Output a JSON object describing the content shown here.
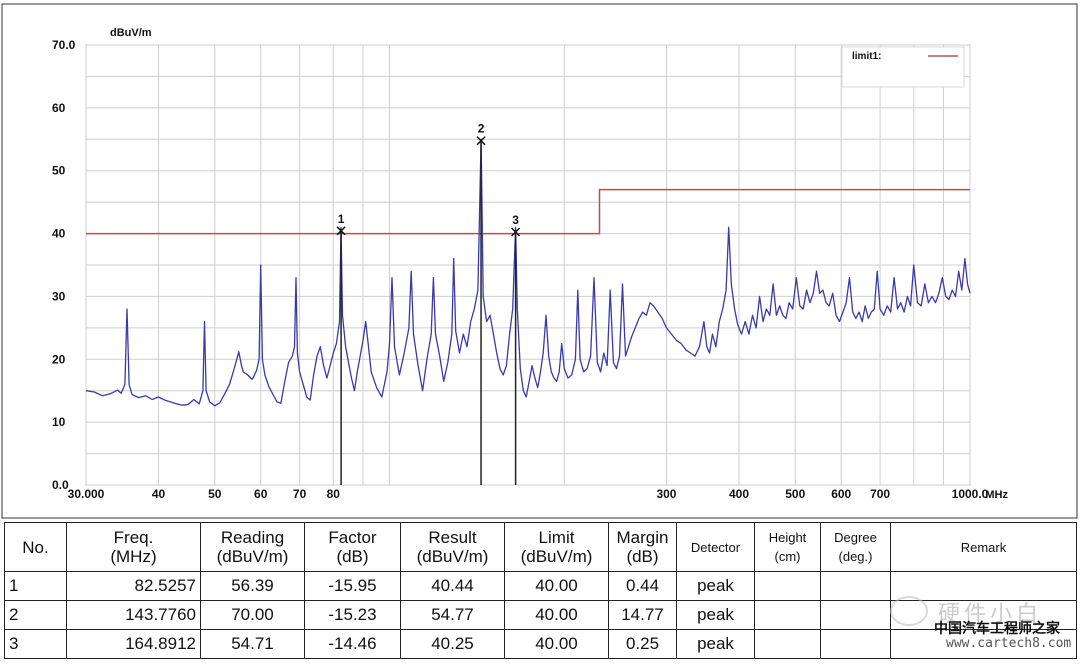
{
  "chart_data": {
    "type": "line",
    "y_unit": "dBuV/m",
    "x_unit": "MHz",
    "x_scale": "log",
    "xlim": [
      30,
      1000
    ],
    "ylim": [
      0,
      70
    ],
    "grid": true,
    "y_ticks": [
      {
        "value": 0,
        "label": "0.0"
      },
      {
        "value": 10,
        "label": "10"
      },
      {
        "value": 20,
        "label": "20"
      },
      {
        "value": 30,
        "label": "30"
      },
      {
        "value": 40,
        "label": "40"
      },
      {
        "value": 50,
        "label": "50"
      },
      {
        "value": 60,
        "label": "60"
      },
      {
        "value": 70,
        "label": "70.0"
      }
    ],
    "x_ticks": [
      {
        "value": 30,
        "label": "30.000"
      },
      {
        "value": 40,
        "label": "40"
      },
      {
        "value": 50,
        "label": "50"
      },
      {
        "value": 60,
        "label": "60"
      },
      {
        "value": 70,
        "label": "70"
      },
      {
        "value": 80,
        "label": "80"
      },
      {
        "value": 90,
        "label": ""
      },
      {
        "value": 100,
        "label": ""
      },
      {
        "value": 200,
        "label": ""
      },
      {
        "value": 300,
        "label": "300"
      },
      {
        "value": 400,
        "label": "400"
      },
      {
        "value": 500,
        "label": "500"
      },
      {
        "value": 600,
        "label": "600"
      },
      {
        "value": 700,
        "label": "700"
      },
      {
        "value": 800,
        "label": ""
      },
      {
        "value": 900,
        "label": ""
      },
      {
        "value": 1000,
        "label": "1000.0"
      }
    ],
    "legend": {
      "position": "top-right",
      "label": "limit1:",
      "color": "#b5534a"
    },
    "limit_line": {
      "name": "limit1",
      "color": "#b5534a",
      "points": [
        [
          30,
          40
        ],
        [
          230,
          40
        ],
        [
          230,
          47
        ],
        [
          1000,
          47
        ]
      ]
    },
    "trace": {
      "color": "#3a3aa8",
      "points": [
        [
          30,
          15
        ],
        [
          31,
          14.8
        ],
        [
          32,
          14.2
        ],
        [
          33,
          14.5
        ],
        [
          34,
          15.1
        ],
        [
          34.5,
          14.6
        ],
        [
          35,
          16
        ],
        [
          35.3,
          28
        ],
        [
          35.6,
          16
        ],
        [
          36,
          14.4
        ],
        [
          37,
          13.9
        ],
        [
          38,
          14.2
        ],
        [
          39,
          13.6
        ],
        [
          40,
          14.0
        ],
        [
          41,
          13.5
        ],
        [
          42,
          13.2
        ],
        [
          43,
          12.9
        ],
        [
          44,
          12.7
        ],
        [
          45,
          12.8
        ],
        [
          46,
          13.6
        ],
        [
          47,
          12.9
        ],
        [
          47.7,
          15
        ],
        [
          48.0,
          26
        ],
        [
          48.3,
          15
        ],
        [
          49,
          13.2
        ],
        [
          50,
          12.6
        ],
        [
          51,
          13.1
        ],
        [
          52,
          14.5
        ],
        [
          53,
          16
        ],
        [
          54,
          18.5
        ],
        [
          55,
          21.2
        ],
        [
          55.6,
          19
        ],
        [
          56,
          18
        ],
        [
          57,
          17.5
        ],
        [
          58,
          16.8
        ],
        [
          59,
          18.2
        ],
        [
          59.6,
          20
        ],
        [
          60,
          35
        ],
        [
          60.4,
          20
        ],
        [
          61,
          17.5
        ],
        [
          62,
          15.6
        ],
        [
          63,
          14.4
        ],
        [
          64,
          13.2
        ],
        [
          65,
          13.0
        ],
        [
          66,
          16.5
        ],
        [
          67,
          19.5
        ],
        [
          68,
          20.5
        ],
        [
          68.6,
          22
        ],
        [
          69.0,
          33
        ],
        [
          69.4,
          21
        ],
        [
          70,
          18.0
        ],
        [
          71,
          16.0
        ],
        [
          72,
          14.0
        ],
        [
          73,
          13.5
        ],
        [
          74,
          17.5
        ],
        [
          75,
          20.5
        ],
        [
          76,
          22.0
        ],
        [
          77,
          19.0
        ],
        [
          78,
          17.0
        ],
        [
          79,
          19.0
        ],
        [
          80,
          21.0
        ],
        [
          81,
          22.5
        ],
        [
          82,
          26.0
        ],
        [
          82.5,
          41
        ],
        [
          83,
          27
        ],
        [
          84,
          22.0
        ],
        [
          85,
          19.5
        ],
        [
          86,
          17.0
        ],
        [
          87,
          15.0
        ],
        [
          88,
          18.0
        ],
        [
          90,
          23.0
        ],
        [
          91,
          26.0
        ],
        [
          92,
          22.0
        ],
        [
          93,
          18.0
        ],
        [
          95,
          15.5
        ],
        [
          97,
          14.0
        ],
        [
          99,
          18.0
        ],
        [
          100,
          22.5
        ],
        [
          101,
          33
        ],
        [
          102,
          22.0
        ],
        [
          104,
          17.5
        ],
        [
          106,
          21.0
        ],
        [
          108,
          25.0
        ],
        [
          109,
          34
        ],
        [
          110,
          24.0
        ],
        [
          112,
          19.0
        ],
        [
          114,
          15.0
        ],
        [
          116,
          20.0
        ],
        [
          118,
          24.0
        ],
        [
          119,
          33
        ],
        [
          120,
          24.0
        ],
        [
          122,
          20.5
        ],
        [
          124,
          16.5
        ],
        [
          126,
          19.5
        ],
        [
          128,
          24.0
        ],
        [
          129,
          36
        ],
        [
          130,
          24.5
        ],
        [
          132,
          21.0
        ],
        [
          134,
          24.0
        ],
        [
          136,
          22.0
        ],
        [
          138,
          26.0
        ],
        [
          140,
          28.0
        ],
        [
          142,
          31.0
        ],
        [
          143.8,
          55
        ],
        [
          145,
          30
        ],
        [
          147,
          26.0
        ],
        [
          149,
          27.0
        ],
        [
          151,
          24.0
        ],
        [
          153,
          21.0
        ],
        [
          155,
          18.5
        ],
        [
          157,
          17.5
        ],
        [
          159,
          19.0
        ],
        [
          161,
          24.0
        ],
        [
          163,
          28.0
        ],
        [
          164.9,
          41
        ],
        [
          166,
          28
        ],
        [
          168,
          18.5
        ],
        [
          170,
          15.0
        ],
        [
          172,
          14.0
        ],
        [
          174,
          16.5
        ],
        [
          176,
          19.0
        ],
        [
          178,
          17.0
        ],
        [
          180,
          15.5
        ],
        [
          182,
          18.0
        ],
        [
          184,
          21.0
        ],
        [
          186,
          27.0
        ],
        [
          188,
          20.5
        ],
        [
          190,
          18.0
        ],
        [
          192,
          17.0
        ],
        [
          194,
          16.5
        ],
        [
          196,
          18.0
        ],
        [
          198,
          22.5
        ],
        [
          200,
          18.5
        ],
        [
          203,
          17.0
        ],
        [
          206,
          17.5
        ],
        [
          209,
          20.0
        ],
        [
          211,
          31
        ],
        [
          213,
          20.0
        ],
        [
          216,
          18.0
        ],
        [
          219,
          18.5
        ],
        [
          222,
          20.5
        ],
        [
          225,
          33
        ],
        [
          228,
          19.5
        ],
        [
          231,
          18.0
        ],
        [
          234,
          21.0
        ],
        [
          237,
          19.0
        ],
        [
          240,
          31
        ],
        [
          243,
          19.5
        ],
        [
          246,
          18.5
        ],
        [
          249,
          20.5
        ],
        [
          252,
          32
        ],
        [
          255,
          20.5
        ],
        [
          258,
          22.0
        ],
        [
          261,
          23.5
        ],
        [
          265,
          25.0
        ],
        [
          269,
          26.5
        ],
        [
          273,
          27.5
        ],
        [
          277,
          27.0
        ],
        [
          281,
          29.0
        ],
        [
          285,
          28.5
        ],
        [
          290,
          27.5
        ],
        [
          295,
          26.5
        ],
        [
          300,
          25.0
        ],
        [
          306,
          24.0
        ],
        [
          312,
          23.0
        ],
        [
          318,
          22.5
        ],
        [
          324,
          21.5
        ],
        [
          330,
          21.0
        ],
        [
          336,
          20.5
        ],
        [
          342,
          22.0
        ],
        [
          348,
          26.0
        ],
        [
          352,
          22.0
        ],
        [
          356,
          21.0
        ],
        [
          360,
          24.0
        ],
        [
          365,
          22.0
        ],
        [
          370,
          26.0
        ],
        [
          375,
          28.0
        ],
        [
          380,
          31.0
        ],
        [
          384,
          41
        ],
        [
          388,
          32.0
        ],
        [
          393,
          28.0
        ],
        [
          398,
          25.5
        ],
        [
          404,
          24.0
        ],
        [
          410,
          26.0
        ],
        [
          416,
          24.0
        ],
        [
          422,
          27.0
        ],
        [
          428,
          25.0
        ],
        [
          434,
          30.0
        ],
        [
          440,
          26.0
        ],
        [
          446,
          28.0
        ],
        [
          452,
          27.0
        ],
        [
          458,
          32
        ],
        [
          464,
          27.0
        ],
        [
          470,
          28.5
        ],
        [
          476,
          27.0
        ],
        [
          482,
          26.5
        ],
        [
          488,
          29.0
        ],
        [
          495,
          28.0
        ],
        [
          502,
          33
        ],
        [
          509,
          28.5
        ],
        [
          516,
          28.0
        ],
        [
          523,
          31.0
        ],
        [
          530,
          29.0
        ],
        [
          537,
          30.5
        ],
        [
          544,
          34
        ],
        [
          551,
          30.5
        ],
        [
          558,
          31.0
        ],
        [
          565,
          29.0
        ],
        [
          572,
          28.5
        ],
        [
          580,
          30.5
        ],
        [
          588,
          27.0
        ],
        [
          596,
          26.0
        ],
        [
          604,
          27.5
        ],
        [
          612,
          29.0
        ],
        [
          620,
          33
        ],
        [
          628,
          27.5
        ],
        [
          636,
          26.5
        ],
        [
          644,
          27.5
        ],
        [
          652,
          26.0
        ],
        [
          660,
          28.5
        ],
        [
          668,
          26.5
        ],
        [
          676,
          27.5
        ],
        [
          684,
          28.0
        ],
        [
          692,
          34
        ],
        [
          700,
          28.0
        ],
        [
          710,
          27.0
        ],
        [
          720,
          28.5
        ],
        [
          730,
          27.5
        ],
        [
          740,
          33
        ],
        [
          750,
          28.0
        ],
        [
          760,
          29.0
        ],
        [
          770,
          27.5
        ],
        [
          780,
          30.0
        ],
        [
          790,
          28.5
        ],
        [
          800,
          35
        ],
        [
          812,
          29.0
        ],
        [
          824,
          28.5
        ],
        [
          836,
          32
        ],
        [
          848,
          29.0
        ],
        [
          860,
          30.0
        ],
        [
          872,
          29.0
        ],
        [
          884,
          30.5
        ],
        [
          896,
          33
        ],
        [
          908,
          30.0
        ],
        [
          920,
          29.5
        ],
        [
          932,
          31.0
        ],
        [
          944,
          30.0
        ],
        [
          956,
          34
        ],
        [
          968,
          31.0
        ],
        [
          980,
          36
        ],
        [
          990,
          32.0
        ],
        [
          1000,
          30.5
        ]
      ]
    },
    "markers": [
      {
        "no": "1",
        "freq": 82.5257,
        "result": 40.44
      },
      {
        "no": "2",
        "freq": 143.776,
        "result": 54.77
      },
      {
        "no": "3",
        "freq": 164.8912,
        "result": 40.25
      }
    ]
  },
  "table": {
    "headers": [
      {
        "key": "no",
        "text": "No."
      },
      {
        "key": "freq",
        "text": "Freq.\n(MHz)"
      },
      {
        "key": "reading",
        "text": "Reading\n(dBuV/m)"
      },
      {
        "key": "factor",
        "text": "Factor\n(dB)"
      },
      {
        "key": "result",
        "text": "Result\n(dBuV/m)"
      },
      {
        "key": "limit",
        "text": "Limit\n(dBuV/m)"
      },
      {
        "key": "margin",
        "text": "Margin\n(dB)"
      },
      {
        "key": "detector",
        "text": "Detector"
      },
      {
        "key": "height",
        "text": "Height\n(cm)"
      },
      {
        "key": "degree",
        "text": "Degree\n(deg.)"
      },
      {
        "key": "remark",
        "text": "Remark"
      }
    ],
    "rows": [
      {
        "no": "1",
        "freq": "82.5257",
        "reading": "56.39",
        "factor": "-15.95",
        "result": "40.44",
        "limit": "40.00",
        "margin": "0.44",
        "detector": "peak",
        "height": "",
        "degree": "",
        "remark": ""
      },
      {
        "no": "2",
        "freq": "143.7760",
        "reading": "70.00",
        "factor": "-15.23",
        "result": "54.77",
        "limit": "40.00",
        "margin": "14.77",
        "detector": "peak",
        "height": "",
        "degree": "",
        "remark": ""
      },
      {
        "no": "3",
        "freq": "164.8912",
        "reading": "54.71",
        "factor": "-14.46",
        "result": "40.25",
        "limit": "40.00",
        "margin": "0.25",
        "detector": "peak",
        "height": "",
        "degree": "",
        "remark": ""
      }
    ]
  },
  "watermark": {
    "main": "硬件小白",
    "sub": "中国汽车工程师之家",
    "url": "www.cartech8.com"
  }
}
